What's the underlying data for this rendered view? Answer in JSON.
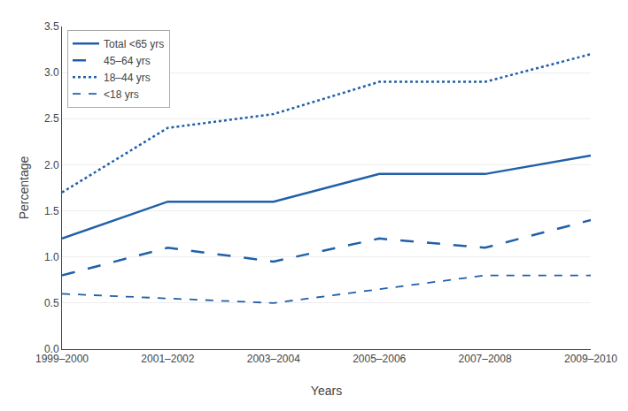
{
  "chart_data": {
    "type": "line",
    "categories": [
      "1999–2000",
      "2001–2002",
      "2003–2004",
      "2005–2006",
      "2007–2008",
      "2009–2010"
    ],
    "series": [
      {
        "name": "Total <65 yrs",
        "values": [
          1.2,
          1.6,
          1.6,
          1.9,
          1.9,
          2.1
        ],
        "line_style": "solid",
        "color": "#2060a8"
      },
      {
        "name": "45–64 yrs",
        "values": [
          0.8,
          1.1,
          0.95,
          1.2,
          1.1,
          1.4
        ],
        "line_style": "long_dash",
        "color": "#2060a8"
      },
      {
        "name": "18–44 yrs",
        "values": [
          1.7,
          2.4,
          2.55,
          2.9,
          2.9,
          3.2
        ],
        "line_style": "dot",
        "color": "#2060a8"
      },
      {
        "name": "<18 yrs",
        "values": [
          0.6,
          0.55,
          0.5,
          0.65,
          0.8,
          0.8
        ],
        "line_style": "dash",
        "color": "#2060a8"
      }
    ],
    "x_label": "Years",
    "y_label": "Percentage",
    "ylim": [
      0.0,
      3.5
    ],
    "yticks": [
      {
        "value": 0.0,
        "label": "0.0"
      },
      0.5,
      {
        "value": 1.0,
        "label": "1.0"
      },
      1.5,
      {
        "value": 2.0,
        "label": "2.0"
      },
      2.5,
      {
        "value": 3.0,
        "label": "3.0"
      },
      3.5
    ],
    "grid": true,
    "legend": "upper left"
  }
}
